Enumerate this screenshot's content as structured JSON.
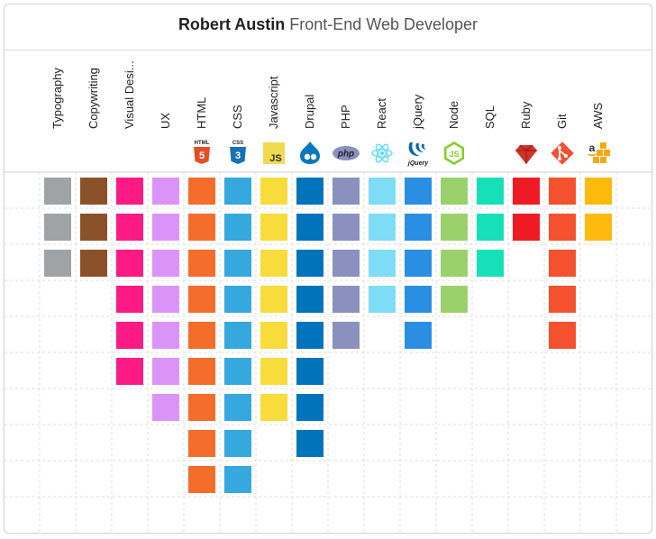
{
  "header": {
    "name": "Robert Austin",
    "role": "Front-End Web Developer"
  },
  "chart_data": {
    "type": "bar",
    "title": "Robert Austin Front-End Web Developer",
    "xlabel": "",
    "ylabel": "",
    "ylim": [
      0,
      9
    ],
    "unit": "blocks",
    "categories": [
      "Typography",
      "Copywriting",
      "Visual Desi...",
      "UX",
      "HTML",
      "CSS",
      "Javascript",
      "Drupal",
      "PHP",
      "React",
      "jQuery",
      "Node",
      "SQL",
      "Ruby",
      "Git",
      "AWS"
    ],
    "values": [
      3,
      3,
      6,
      7,
      9,
      9,
      7,
      8,
      5,
      4,
      5,
      4,
      3,
      2,
      5,
      2
    ],
    "colors": [
      "#a0a3a6",
      "#8b5229",
      "#fd1a85",
      "#dc93f7",
      "#f46d2a",
      "#35a8de",
      "#f7dc3b",
      "#0173ba",
      "#8a91be",
      "#7ddcf6",
      "#2a8fe3",
      "#9bd16b",
      "#16e0b8",
      "#ef1b24",
      "#f4512e",
      "#fdba0d"
    ],
    "icons": [
      "",
      "",
      "",
      "",
      "html5-icon",
      "css3-icon",
      "javascript-icon",
      "drupal-icon",
      "php-icon",
      "react-icon",
      "jquery-icon",
      "nodejs-icon",
      "",
      "ruby-icon",
      "git-icon",
      "aws-icon"
    ],
    "icon_text": {
      "html": "HTML",
      "css": "CSS",
      "js": "JS",
      "php": "php",
      "jquery": "jQuery",
      "node": "JS",
      "aws": "a"
    },
    "grid": "dashed"
  }
}
